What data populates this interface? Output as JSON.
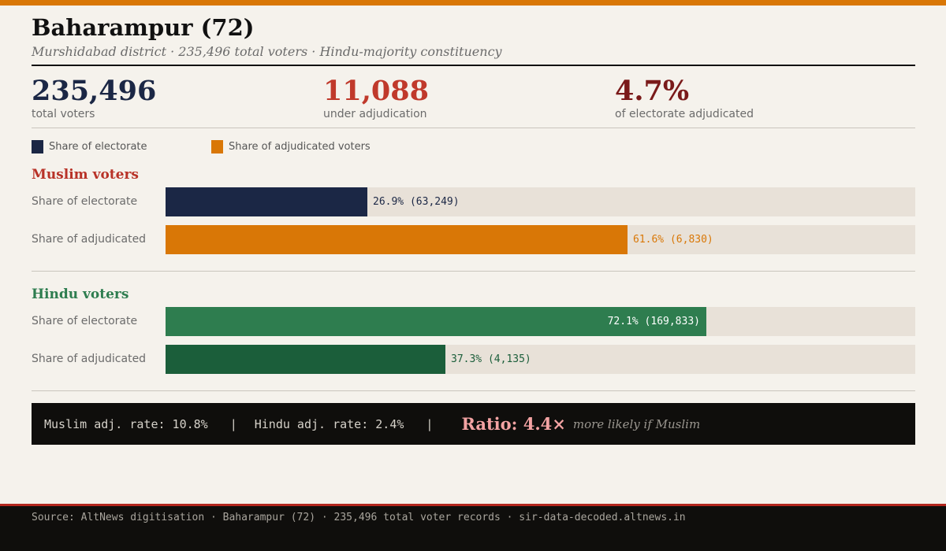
{
  "header": {
    "title": "Baharampur (72)",
    "subtitle": "Murshidabad district · 235,496 total voters · Hindu-majority constituency"
  },
  "kpis": [
    {
      "value": "235,496",
      "label": "total voters"
    },
    {
      "value": "11,088",
      "label": "under adjudication"
    },
    {
      "value": "4.7%",
      "label": "of electorate adjudicated"
    }
  ],
  "legend": [
    {
      "label": "Share of electorate",
      "color": "#1b2745"
    },
    {
      "label": "Share of adjudicated voters",
      "color": "#d97706"
    }
  ],
  "colors": {
    "muslim_title": "#b83227",
    "hindu_title": "#2e7d4f",
    "muslim_electorate": "#1b2745",
    "muslim_adjudicated": "#d97706",
    "hindu_electorate": "#2e7d4f",
    "hindu_adjudicated": "#1b5e3a",
    "kpi_total": "#1b2745",
    "kpi_adjudicated": "#c0392b",
    "kpi_percent": "#7a1a1a",
    "track": "#e8e1d8"
  },
  "chart_data": {
    "type": "bar",
    "orientation": "horizontal",
    "xlim": [
      0,
      100
    ],
    "unit": "%",
    "groups": [
      {
        "name": "Muslim voters",
        "rows": [
          {
            "label": "Share of electorate",
            "value": 26.9,
            "count": 63249,
            "value_label": "26.9% (63,249)"
          },
          {
            "label": "Share of adjudicated",
            "value": 61.6,
            "count": 6830,
            "value_label": "61.6% (6,830)"
          }
        ]
      },
      {
        "name": "Hindu voters",
        "rows": [
          {
            "label": "Share of electorate",
            "value": 72.1,
            "count": 169833,
            "value_label": "72.1% (169,833)"
          },
          {
            "label": "Share of adjudicated",
            "value": 37.3,
            "count": 4135,
            "value_label": "37.3% (4,135)"
          }
        ]
      }
    ]
  },
  "summary": {
    "muslim_rate": "Muslim adj. rate: 10.8%",
    "hindu_rate": "Hindu adj. rate: 2.4%",
    "separator": "|",
    "ratio": "Ratio: 4.4×",
    "tail": "more likely if Muslim"
  },
  "footer": {
    "source": "Source: AltNews digitisation · Baharampur (72) · 235,496 total voter records · sir-data-decoded.altnews.in"
  }
}
